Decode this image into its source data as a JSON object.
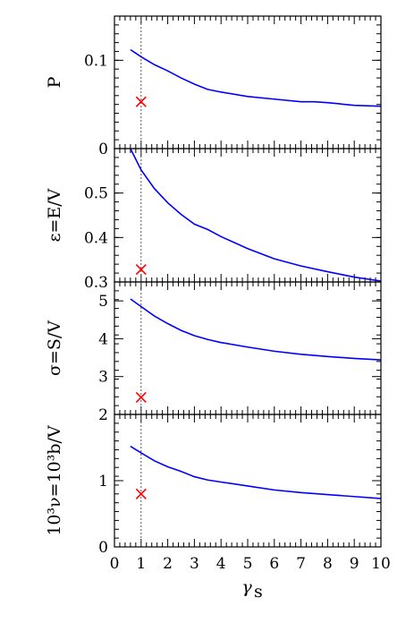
{
  "chart_data": {
    "type": "line",
    "xlabel": "γ_s",
    "x_tick_labels": [
      "0",
      "1",
      "2",
      "3",
      "4",
      "5",
      "6",
      "7",
      "8",
      "9",
      "10"
    ],
    "xlim": [
      0,
      10
    ],
    "reference_line_x": 1,
    "colors": {
      "line": "#0000ff",
      "marker": "#ff0000",
      "reference": "#555555",
      "frame": "#000000"
    },
    "panels": [
      {
        "ylabel": "P",
        "ylim": [
          0,
          0.15
        ],
        "y_ticks": [
          {
            "value": 0.1,
            "label": "0.1"
          },
          {
            "value": 0,
            "label": "0"
          }
        ],
        "series": {
          "x": [
            0.6,
            0.8,
            1.0,
            1.5,
            2.0,
            2.5,
            3.0,
            3.5,
            4.0,
            5.0,
            6.0,
            7.0,
            7.5,
            8.0,
            9.0,
            10.0
          ],
          "y": [
            0.112,
            0.108,
            0.104,
            0.095,
            0.088,
            0.08,
            0.073,
            0.067,
            0.064,
            0.059,
            0.056,
            0.053,
            0.053,
            0.052,
            0.049,
            0.048
          ]
        },
        "marker": {
          "x": 1,
          "y": 0.053
        }
      },
      {
        "ylabel": "ε=E/V",
        "ylim": [
          0.3,
          0.6
        ],
        "y_ticks": [
          {
            "value": 0.5,
            "label": "0.5"
          },
          {
            "value": 0.4,
            "label": "0.4"
          },
          {
            "value": 0.3,
            "label": "0.3"
          }
        ],
        "series": {
          "x": [
            0.6,
            1.0,
            1.5,
            2.0,
            2.5,
            3.0,
            3.5,
            4.0,
            5.0,
            6.0,
            7.0,
            8.0,
            9.0,
            10.0
          ],
          "y": [
            0.6,
            0.552,
            0.51,
            0.478,
            0.452,
            0.43,
            0.418,
            0.402,
            0.375,
            0.352,
            0.336,
            0.323,
            0.311,
            0.302
          ]
        },
        "marker": {
          "x": 1,
          "y": 0.328
        }
      },
      {
        "ylabel": "σ=S/V",
        "ylim": [
          2,
          5.5
        ],
        "y_ticks": [
          {
            "value": 5,
            "label": "5"
          },
          {
            "value": 4,
            "label": "4"
          },
          {
            "value": 3,
            "label": "3"
          }
        ],
        "series": {
          "x": [
            0.6,
            1.0,
            1.5,
            2.0,
            2.5,
            3.0,
            3.5,
            4.0,
            5.0,
            6.0,
            7.0,
            8.0,
            9.0,
            10.0
          ],
          "y": [
            5.05,
            4.85,
            4.6,
            4.4,
            4.22,
            4.08,
            3.98,
            3.9,
            3.78,
            3.67,
            3.59,
            3.53,
            3.48,
            3.44
          ]
        },
        "marker": {
          "x": 1,
          "y": 2.45
        }
      },
      {
        "ylabel": "10³ν=10³b/V",
        "ylim": [
          0,
          2
        ],
        "y_ticks": [
          {
            "value": 2,
            "label": "2"
          },
          {
            "value": 1,
            "label": "1"
          },
          {
            "value": 0,
            "label": "0"
          }
        ],
        "series": {
          "x": [
            0.6,
            1.0,
            1.5,
            2.0,
            2.5,
            3.0,
            3.5,
            4.0,
            5.0,
            6.0,
            7.0,
            8.0,
            9.0,
            10.0
          ],
          "y": [
            1.52,
            1.42,
            1.3,
            1.21,
            1.14,
            1.06,
            1.01,
            0.98,
            0.92,
            0.86,
            0.82,
            0.79,
            0.76,
            0.73
          ]
        },
        "marker": {
          "x": 1,
          "y": 0.8
        }
      }
    ]
  }
}
